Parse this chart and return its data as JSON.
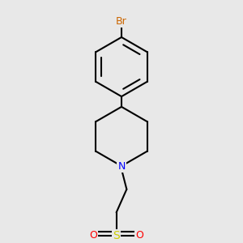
{
  "bg_color": "#e8e8e8",
  "bond_color": "#000000",
  "bond_width": 1.5,
  "Br_color": "#cc6600",
  "N_color": "#0000ff",
  "S_color": "#cccc00",
  "O_color": "#ff0000",
  "font_size": 9,
  "figsize": [
    3.0,
    3.0
  ],
  "dpi": 100,
  "xlim": [
    0.15,
    0.85
  ],
  "ylim": [
    0.05,
    0.97
  ]
}
